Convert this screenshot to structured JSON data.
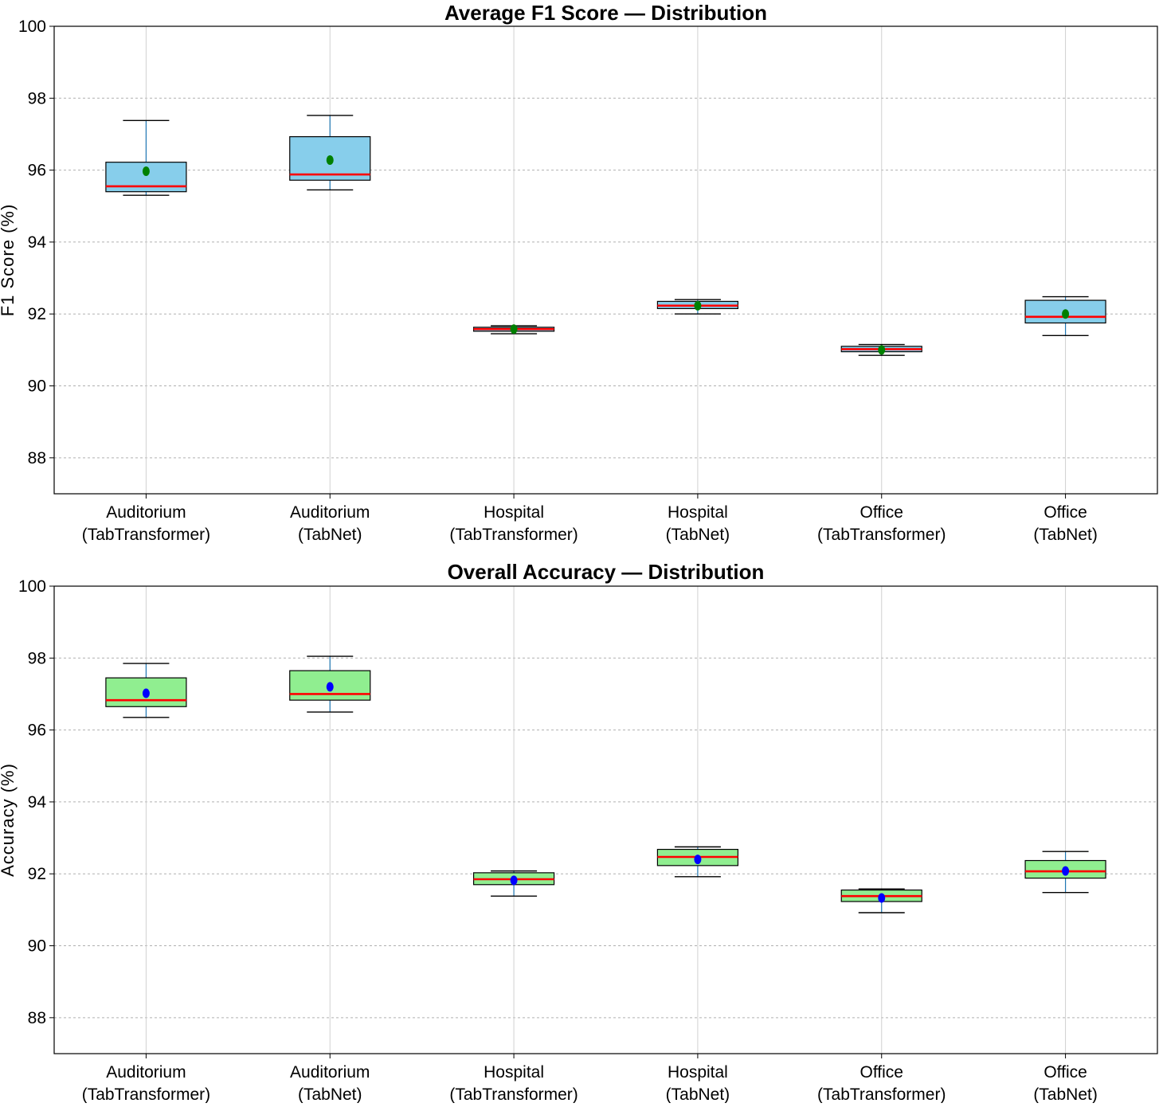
{
  "chart_data": [
    {
      "type": "box",
      "title": "Average F1 Score — Distribution",
      "xlabel": "",
      "ylabel": "F1 Score (%)",
      "ylim": [
        87,
        100
      ],
      "yticks": [
        88,
        90,
        92,
        94,
        96,
        98,
        100
      ],
      "grid": true,
      "box_color": "#87ceeb",
      "median_color": "#ff0000",
      "mean_color": "#008000",
      "categories": [
        [
          "Auditorium",
          "(TabTransformer)"
        ],
        [
          "Auditorium",
          "(TabNet)"
        ],
        [
          "Hospital",
          "(TabTransformer)"
        ],
        [
          "Hospital",
          "(TabNet)"
        ],
        [
          "Office",
          "(TabTransformer)"
        ],
        [
          "Office",
          "(TabNet)"
        ]
      ],
      "boxes": [
        {
          "whisker_low": 95.3,
          "q1": 95.4,
          "median": 95.55,
          "q3": 96.22,
          "whisker_high": 97.38,
          "mean": 95.97
        },
        {
          "whisker_low": 95.45,
          "q1": 95.72,
          "median": 95.88,
          "q3": 96.93,
          "whisker_high": 97.52,
          "mean": 96.28
        },
        {
          "whisker_low": 91.45,
          "q1": 91.52,
          "median": 91.58,
          "q3": 91.63,
          "whisker_high": 91.67,
          "mean": 91.58
        },
        {
          "whisker_low": 92.0,
          "q1": 92.15,
          "median": 92.23,
          "q3": 92.35,
          "whisker_high": 92.4,
          "mean": 92.23
        },
        {
          "whisker_low": 90.85,
          "q1": 90.95,
          "median": 91.02,
          "q3": 91.1,
          "whisker_high": 91.15,
          "mean": 91.0
        },
        {
          "whisker_low": 91.4,
          "q1": 91.75,
          "median": 91.92,
          "q3": 92.38,
          "whisker_high": 92.48,
          "mean": 92.0
        }
      ]
    },
    {
      "type": "box",
      "title": "Overall Accuracy — Distribution",
      "xlabel": "",
      "ylabel": "Accuracy (%)",
      "ylim": [
        87,
        100
      ],
      "yticks": [
        88,
        90,
        92,
        94,
        96,
        98,
        100
      ],
      "grid": true,
      "box_color": "#90ee90",
      "median_color": "#ff0000",
      "mean_color": "#0000ff",
      "categories": [
        [
          "Auditorium",
          "(TabTransformer)"
        ],
        [
          "Auditorium",
          "(TabNet)"
        ],
        [
          "Hospital",
          "(TabTransformer)"
        ],
        [
          "Hospital",
          "(TabNet)"
        ],
        [
          "Office",
          "(TabTransformer)"
        ],
        [
          "Office",
          "(TabNet)"
        ]
      ],
      "boxes": [
        {
          "whisker_low": 96.35,
          "q1": 96.65,
          "median": 96.83,
          "q3": 97.45,
          "whisker_high": 97.85,
          "mean": 97.02
        },
        {
          "whisker_low": 96.5,
          "q1": 96.83,
          "median": 97.0,
          "q3": 97.65,
          "whisker_high": 98.05,
          "mean": 97.2
        },
        {
          "whisker_low": 91.38,
          "q1": 91.7,
          "median": 91.85,
          "q3": 92.03,
          "whisker_high": 92.08,
          "mean": 91.82
        },
        {
          "whisker_low": 91.92,
          "q1": 92.23,
          "median": 92.47,
          "q3": 92.68,
          "whisker_high": 92.75,
          "mean": 92.4
        },
        {
          "whisker_low": 90.92,
          "q1": 91.23,
          "median": 91.38,
          "q3": 91.55,
          "whisker_high": 91.58,
          "mean": 91.33
        },
        {
          "whisker_low": 91.48,
          "q1": 91.88,
          "median": 92.07,
          "q3": 92.37,
          "whisker_high": 92.62,
          "mean": 92.08
        }
      ]
    }
  ]
}
